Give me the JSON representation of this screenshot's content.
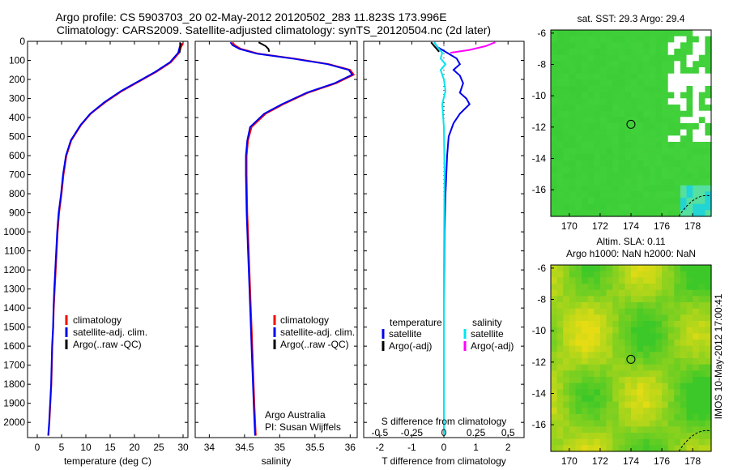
{
  "header": {
    "line1": "Argo profile: CS 5903703_20 02-May-2012 20120502_283 11.823S 173.996E",
    "line2": "Climatology: CARS2009. Satellite-adjusted climatology: synTS_20120504.nc (2d later)"
  },
  "side_stamp": "IMOS 10-May-2012 17:00:41",
  "colors": {
    "climatology": "#ff0000",
    "satellite": "#0000ee",
    "argo": "#000000",
    "sal_satellite": "#00e5ee",
    "sal_argo": "#ff00ff",
    "map_ocean": "#33cc33",
    "map_land": "#ffffff"
  },
  "chart_data": [
    {
      "id": "temperature",
      "type": "line",
      "xlabel": "temperature (deg C)",
      "ylabel": "",
      "xlim": [
        -2,
        31
      ],
      "ylim": [
        2080,
        0
      ],
      "xticks": [
        0,
        5,
        10,
        15,
        20,
        25,
        30
      ],
      "yticks": [
        0,
        100,
        200,
        300,
        400,
        500,
        600,
        700,
        800,
        900,
        1000,
        1100,
        1200,
        1300,
        1400,
        1500,
        1600,
        1700,
        1800,
        1900,
        2000
      ],
      "legend": [
        "climatology",
        "satellite-adj. clim.",
        "Argo(..raw -QC)"
      ],
      "series": [
        {
          "name": "climatology",
          "color_key": "climatology",
          "x": [
            30.0,
            29.6,
            29.2,
            27.5,
            24.5,
            21.0,
            17.5,
            14.0,
            11.0,
            9.0,
            8.0,
            7.0,
            6.0,
            5.4,
            5.0,
            4.5,
            4.2,
            4.0,
            3.8,
            3.6,
            3.4,
            3.3,
            3.1,
            3.0,
            2.9,
            2.8,
            2.7,
            2.6,
            2.5,
            2.3
          ],
          "y": [
            10,
            30,
            60,
            110,
            160,
            210,
            260,
            320,
            380,
            440,
            480,
            520,
            600,
            700,
            800,
            900,
            1000,
            1100,
            1200,
            1300,
            1400,
            1500,
            1600,
            1700,
            1800,
            1850,
            1900,
            1950,
            2000,
            2070
          ]
        },
        {
          "name": "satellite-adj. clim.",
          "color_key": "satellite",
          "x": [
            29.7,
            29.3,
            29.0,
            27.3,
            24.3,
            20.8,
            17.3,
            13.8,
            10.9,
            8.9,
            7.9,
            6.9,
            5.9,
            5.3,
            4.9,
            4.4,
            4.1,
            3.9,
            3.7,
            3.5,
            3.35,
            3.25,
            3.05,
            2.95,
            2.85,
            2.75,
            2.65,
            2.55,
            2.45,
            2.25
          ],
          "y": [
            10,
            30,
            60,
            110,
            160,
            210,
            260,
            320,
            380,
            440,
            480,
            520,
            600,
            700,
            800,
            900,
            1000,
            1100,
            1200,
            1300,
            1400,
            1500,
            1600,
            1700,
            1800,
            1850,
            1900,
            1950,
            2000,
            2070
          ]
        },
        {
          "name": "Argo(..raw -QC)",
          "color_key": "argo",
          "x": [
            29.4,
            29.4,
            29.3
          ],
          "y": [
            5,
            25,
            60
          ]
        }
      ]
    },
    {
      "id": "salinity",
      "type": "line",
      "xlabel": "salinity",
      "ylabel": "",
      "xlim": [
        33.8,
        36.1
      ],
      "ylim": [
        2080,
        0
      ],
      "xticks": [
        34,
        34.5,
        35,
        35.5,
        36
      ],
      "legend": [
        "climatology",
        "satellite-adj. clim.",
        "Argo(..raw -QC)"
      ],
      "annotation": [
        "Argo Australia",
        "PI: Susan Wijffels"
      ],
      "series": [
        {
          "name": "climatology",
          "color_key": "climatology",
          "x": [
            34.33,
            34.36,
            34.45,
            34.7,
            35.2,
            35.7,
            36.0,
            36.05,
            35.8,
            35.4,
            35.05,
            34.8,
            34.6,
            34.55,
            34.53,
            34.53,
            34.54,
            34.56,
            34.58,
            34.6,
            34.62,
            34.64,
            34.66
          ],
          "y": [
            5,
            20,
            40,
            65,
            90,
            120,
            150,
            175,
            220,
            270,
            330,
            380,
            450,
            520,
            600,
            700,
            900,
            1100,
            1300,
            1500,
            1700,
            1900,
            2070
          ]
        },
        {
          "name": "satellite-adj. clim.",
          "color_key": "satellite",
          "x": [
            34.3,
            34.33,
            34.43,
            34.68,
            35.18,
            35.68,
            35.98,
            36.03,
            35.78,
            35.38,
            35.03,
            34.78,
            34.58,
            34.54,
            34.52,
            34.52,
            34.53,
            34.55,
            34.57,
            34.59,
            34.61,
            34.63,
            34.65
          ],
          "y": [
            5,
            20,
            40,
            65,
            90,
            120,
            150,
            175,
            220,
            270,
            330,
            380,
            450,
            520,
            600,
            700,
            900,
            1100,
            1300,
            1500,
            1700,
            1900,
            2070
          ]
        },
        {
          "name": "Argo(..raw -QC)",
          "color_key": "argo",
          "x": [
            34.7,
            34.75,
            34.8,
            34.84,
            34.85
          ],
          "y": [
            5,
            15,
            25,
            40,
            55
          ]
        }
      ]
    },
    {
      "id": "difference",
      "type": "line",
      "xlabel": "T difference from climatology",
      "ylabel": "",
      "xlim": [
        -2.5,
        2.5
      ],
      "ylim": [
        2080,
        0
      ],
      "xticks": [
        -2,
        -1,
        0,
        1,
        2
      ],
      "top_axis_label": "S difference from climatology",
      "top_ticks": [
        -0.5,
        -0.25,
        0,
        0.25,
        0.5
      ],
      "legend_left_title": "temperature",
      "legend_right_title": "salinity",
      "legend_left": [
        "satellite",
        "Argo(-adj)"
      ],
      "legend_right": [
        "satellite",
        "Argo(-adj)"
      ],
      "series": [
        {
          "name": "satellite",
          "color_key": "satellite",
          "x": [
            -0.3,
            -0.2,
            0.1,
            0.4,
            0.5,
            0.3,
            0.5,
            0.6,
            0.5,
            0.7,
            0.8,
            0.5,
            0.3,
            0.15,
            0.1,
            0.05,
            0.02,
            0.0,
            0.0,
            0.0
          ],
          "y": [
            5,
            30,
            60,
            90,
            120,
            150,
            180,
            220,
            270,
            300,
            330,
            380,
            430,
            500,
            600,
            800,
            1000,
            1400,
            1800,
            2070
          ]
        },
        {
          "name": "satellite (S)",
          "color_key": "sal_satellite",
          "x": [
            -0.3,
            -0.2,
            -0.05,
            -0.1,
            0.05,
            -0.1,
            0.0,
            0.05,
            -0.05,
            0.0,
            0.02,
            0.0,
            0.0
          ],
          "y": [
            5,
            30,
            60,
            90,
            120,
            150,
            200,
            260,
            330,
            450,
            700,
            1200,
            2070
          ]
        },
        {
          "name": "Argo(-adj)",
          "color_key": "argo",
          "x": [
            -0.4,
            -0.3,
            -0.15
          ],
          "y": [
            5,
            25,
            55
          ]
        },
        {
          "name": "Argo(-adj) (S)",
          "color_key": "sal_argo",
          "x": [
            1.6,
            1.3,
            0.8,
            0.2
          ],
          "y": [
            5,
            25,
            45,
            60
          ]
        }
      ]
    },
    {
      "id": "sst_map",
      "type": "heatmap",
      "title": "sat. SST: 29.3  Argo: 29.4",
      "xticks": [
        170,
        172,
        174,
        176,
        178
      ],
      "yticks": [
        -6,
        -8,
        -10,
        -12,
        -14,
        -16
      ],
      "xlim": [
        168.8,
        179.2
      ],
      "ylim": [
        -17.7,
        -5.8
      ],
      "marker": {
        "lon": 173.996,
        "lat": -11.823
      }
    },
    {
      "id": "sla_map",
      "type": "heatmap",
      "title": "Altim. SLA: 0.11",
      "subtitle": "Argo h1000: NaN h2000: NaN",
      "xticks": [
        170,
        172,
        174,
        176,
        178
      ],
      "yticks": [
        -6,
        -8,
        -10,
        -12,
        -14,
        -16
      ],
      "xlim": [
        168.8,
        179.2
      ],
      "ylim": [
        -17.7,
        -5.8
      ],
      "marker": {
        "lon": 173.996,
        "lat": -11.823
      }
    }
  ]
}
